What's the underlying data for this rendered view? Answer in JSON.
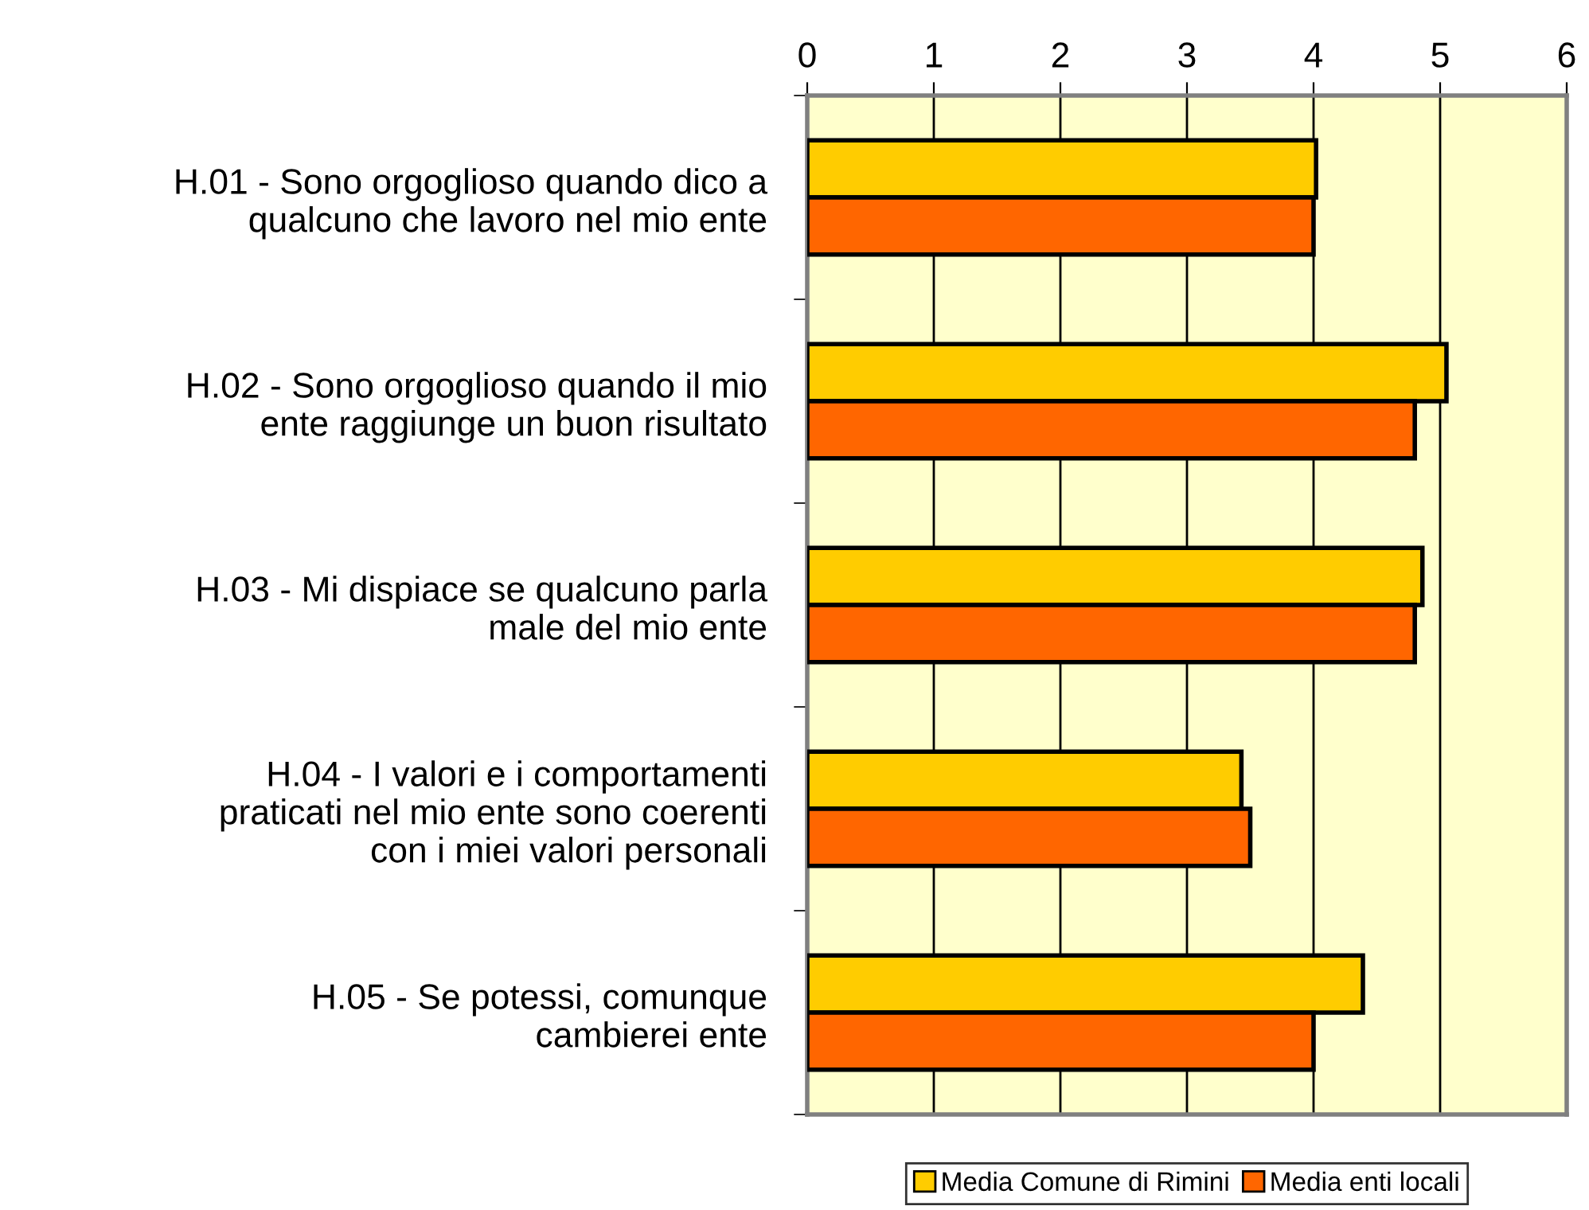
{
  "chart_data": {
    "type": "bar",
    "orientation": "horizontal",
    "categories": [
      "H.01 - Sono orgoglioso quando dico a\nqualcuno che lavoro nel mio ente",
      "H.02 - Sono orgoglioso quando il mio\nente raggiunge un buon risultato",
      "H.03 - Mi dispiace se qualcuno parla\nmale del mio ente",
      "H.04 - I valori e i comportamenti\npraticati nel mio ente sono coerenti\ncon i miei valori personali",
      "H.05 - Se potessi, comunque\ncambierei ente"
    ],
    "series": [
      {
        "name": "Media Comune di Rimini",
        "color": "#ffcc00",
        "values": [
          4.02,
          5.05,
          4.86,
          3.43,
          4.39
        ]
      },
      {
        "name": "Media enti locali",
        "color": "#ff6600",
        "values": [
          4.0,
          4.8,
          4.8,
          3.5,
          4.0
        ]
      }
    ],
    "xlim": [
      0,
      6
    ],
    "xticks": [
      0,
      1,
      2,
      3,
      4,
      5,
      6
    ],
    "grid": "x",
    "legend": "bottom"
  }
}
